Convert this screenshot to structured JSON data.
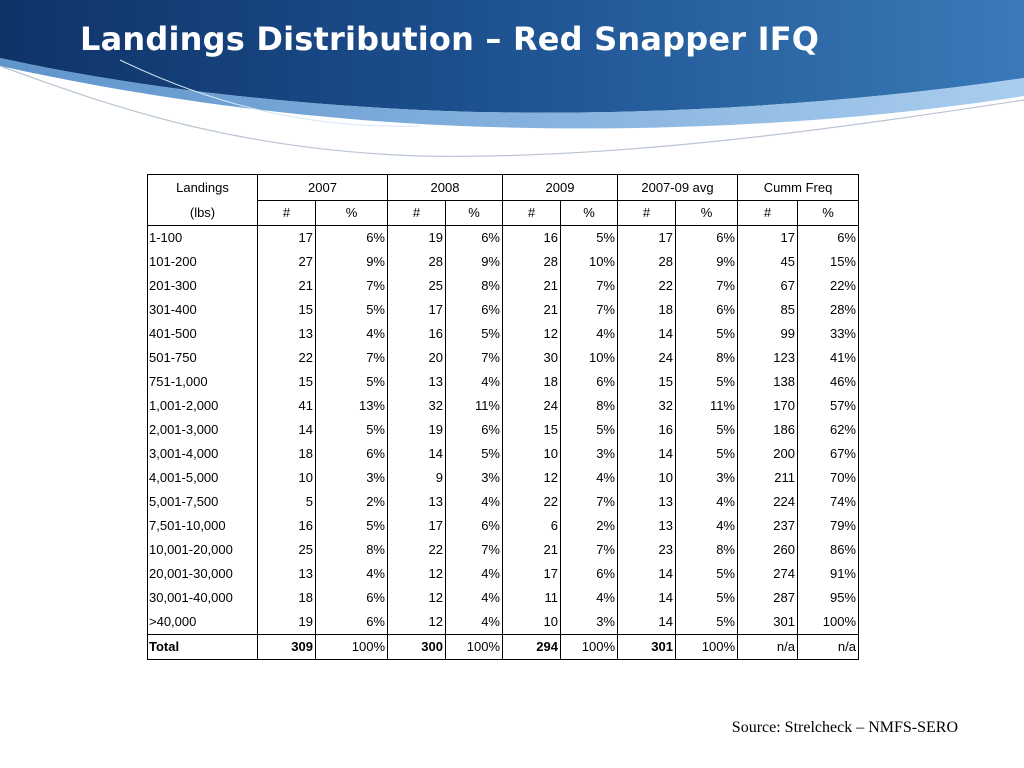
{
  "title": "Landings Distribution – Red Snapper IFQ",
  "source": "Source: Strelcheck – NMFS-SERO",
  "colors": {
    "banner_dark": "#123a73",
    "banner_mid": "#2f6aa8",
    "banner_light": "#8fb8e0",
    "title_text": "#ffffff"
  },
  "table": {
    "header_landings": "Landings",
    "header_lbs": "(lbs)",
    "groups": [
      "2007",
      "2008",
      "2009",
      "2007-09 avg",
      "Cumm Freq"
    ],
    "sub": [
      "#",
      "%",
      "#",
      "%",
      "#",
      "%",
      "#",
      "%",
      "#",
      "%"
    ],
    "rows": [
      [
        "1-100",
        "17",
        "6%",
        "19",
        "6%",
        "16",
        "5%",
        "17",
        "6%",
        "17",
        "6%"
      ],
      [
        "101-200",
        "27",
        "9%",
        "28",
        "9%",
        "28",
        "10%",
        "28",
        "9%",
        "45",
        "15%"
      ],
      [
        "201-300",
        "21",
        "7%",
        "25",
        "8%",
        "21",
        "7%",
        "22",
        "7%",
        "67",
        "22%"
      ],
      [
        "301-400",
        "15",
        "5%",
        "17",
        "6%",
        "21",
        "7%",
        "18",
        "6%",
        "85",
        "28%"
      ],
      [
        "401-500",
        "13",
        "4%",
        "16",
        "5%",
        "12",
        "4%",
        "14",
        "5%",
        "99",
        "33%"
      ],
      [
        "501-750",
        "22",
        "7%",
        "20",
        "7%",
        "30",
        "10%",
        "24",
        "8%",
        "123",
        "41%"
      ],
      [
        "751-1,000",
        "15",
        "5%",
        "13",
        "4%",
        "18",
        "6%",
        "15",
        "5%",
        "138",
        "46%"
      ],
      [
        "1,001-2,000",
        "41",
        "13%",
        "32",
        "11%",
        "24",
        "8%",
        "32",
        "11%",
        "170",
        "57%"
      ],
      [
        "2,001-3,000",
        "14",
        "5%",
        "19",
        "6%",
        "15",
        "5%",
        "16",
        "5%",
        "186",
        "62%"
      ],
      [
        "3,001-4,000",
        "18",
        "6%",
        "14",
        "5%",
        "10",
        "3%",
        "14",
        "5%",
        "200",
        "67%"
      ],
      [
        "4,001-5,000",
        "10",
        "3%",
        "9",
        "3%",
        "12",
        "4%",
        "10",
        "3%",
        "211",
        "70%"
      ],
      [
        "5,001-7,500",
        "5",
        "2%",
        "13",
        "4%",
        "22",
        "7%",
        "13",
        "4%",
        "224",
        "74%"
      ],
      [
        "7,501-10,000",
        "16",
        "5%",
        "17",
        "6%",
        "6",
        "2%",
        "13",
        "4%",
        "237",
        "79%"
      ],
      [
        "10,001-20,000",
        "25",
        "8%",
        "22",
        "7%",
        "21",
        "7%",
        "23",
        "8%",
        "260",
        "86%"
      ],
      [
        "20,001-30,000",
        "13",
        "4%",
        "12",
        "4%",
        "17",
        "6%",
        "14",
        "5%",
        "274",
        "91%"
      ],
      [
        "30,001-40,000",
        "18",
        "6%",
        "12",
        "4%",
        "11",
        "4%",
        "14",
        "5%",
        "287",
        "95%"
      ],
      [
        ">40,000",
        "19",
        "6%",
        "12",
        "4%",
        "10",
        "3%",
        "14",
        "5%",
        "301",
        "100%"
      ]
    ],
    "total": [
      "Total",
      "309",
      "100%",
      "300",
      "100%",
      "294",
      "100%",
      "301",
      "100%",
      "n/a",
      "n/a"
    ]
  }
}
